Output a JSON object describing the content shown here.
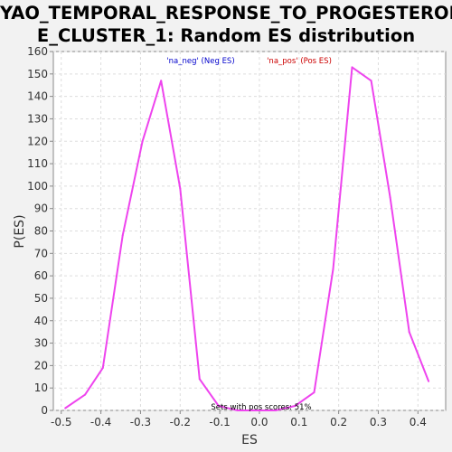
{
  "chart_data": {
    "type": "line",
    "title_lines": [
      "YAO_TEMPORAL_RESPONSE_TO_PROGESTERON",
      "E_CLUSTER_1: Random ES distribution"
    ],
    "xlabel": "ES",
    "ylabel": "P(ES)",
    "xlim": [
      -0.52,
      0.47
    ],
    "ylim": [
      0,
      160
    ],
    "x_ticks": [
      "-0.5",
      "-0.4",
      "-0.3",
      "-0.2",
      "-0.1",
      "0.0",
      "0.1",
      "0.2",
      "0.3",
      "0.4"
    ],
    "x_tick_values": [
      -0.5,
      -0.4,
      -0.3,
      -0.2,
      -0.1,
      0.0,
      0.1,
      0.2,
      0.3,
      0.4
    ],
    "y_ticks": [
      "0",
      "10",
      "20",
      "30",
      "40",
      "50",
      "60",
      "70",
      "80",
      "90",
      "100",
      "110",
      "120",
      "130",
      "140",
      "150",
      "160"
    ],
    "y_tick_values": [
      0,
      10,
      20,
      30,
      40,
      50,
      60,
      70,
      80,
      90,
      100,
      110,
      120,
      130,
      140,
      150,
      160
    ],
    "grid": true,
    "legend": [
      {
        "label": "'na_neg' (Neg ES)",
        "color": "#0000cc"
      },
      {
        "label": "'na_pos' (Pos ES)",
        "color": "#cc0000"
      }
    ],
    "annotation": "Sets with pos scores: 51%",
    "series": [
      {
        "color": "#ee44ee",
        "x": [
          -0.49,
          -0.44,
          -0.395,
          -0.345,
          -0.295,
          -0.248,
          -0.2,
          -0.151,
          -0.103,
          -0.055,
          -0.007,
          0.041,
          0.09,
          0.138,
          0.186,
          0.234,
          0.282,
          0.33,
          0.378,
          0.427
        ],
        "y": [
          1,
          7,
          19,
          78,
          120,
          147,
          99,
          14,
          2,
          0,
          0,
          0,
          2,
          8,
          63,
          153,
          147,
          95,
          35,
          13
        ]
      }
    ]
  }
}
